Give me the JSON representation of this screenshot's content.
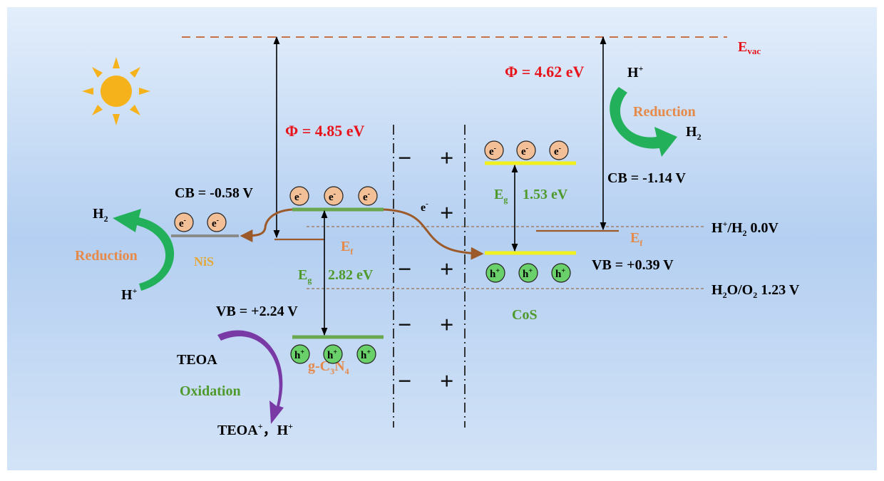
{
  "evac": {
    "text": "E",
    "sub": "vac"
  },
  "nis": {
    "label": "NiS",
    "cb": "CB = -0.58 V",
    "products": {
      "h2": "H",
      "h2_sub": "2",
      "reduction": "Reduction",
      "hplus": "H",
      "hplus_sup": "+"
    }
  },
  "gcn": {
    "phi": "Φ = 4.85 eV",
    "ef": "E",
    "ef_sub": "f",
    "eg": "E",
    "eg_sub": "g",
    "eg_value": "2.82 eV",
    "vb": "VB = +2.24 V",
    "label_a": "g-C",
    "label_sub1": "3",
    "label_b": "N",
    "label_sub2": "4",
    "teoa": "TEOA",
    "oxidation": "Oxidation",
    "teoa_product": "TEOA",
    "teoa_product_sup": "+",
    "teoa_product_tail": "，H",
    "teoa_product_tail_sup": "+"
  },
  "cos": {
    "phi": "Φ = 4.62 eV",
    "eg": "E",
    "eg_sub": "g",
    "eg_value": "1.53 eV",
    "cb": "CB = -1.14 V",
    "vb": "VB = +0.39 V",
    "ef": "E",
    "ef_sub": "f",
    "label": "CoS",
    "products": {
      "hplus": "H",
      "hplus_sup": "+",
      "reduction": "Reduction",
      "h2": "H",
      "h2_sub": "2"
    }
  },
  "transfer": {
    "e": "e",
    "e_sup": "-"
  },
  "carrier": {
    "electron": "e",
    "electron_sup": "-",
    "hole": "h",
    "hole_sup": "+"
  },
  "junction": {
    "minus": "−",
    "plus": "+"
  },
  "levels": {
    "h_h2": "H",
    "h_h2_sup": "+",
    "h_h2_tail": "/H",
    "h_h2_sub": "2",
    "h_h2_value": " 0.0V",
    "h2o_o2": "H",
    "h2o_o2_sub": "2",
    "h2o_o2_mid": "O/O",
    "h2o_o2_sub2": "2",
    "h2o_o2_value": " 1.23 V"
  },
  "colors": {
    "red": "#e8141c",
    "green_text": "#4f9a2c",
    "orange_text": "#e58a4a",
    "gcn_band": "#6aa84f",
    "cos_band": "#f0f01e",
    "brown": "#9c5a2a",
    "electron_fill": "#f3bf97",
    "hole_fill": "#6ad06a"
  }
}
